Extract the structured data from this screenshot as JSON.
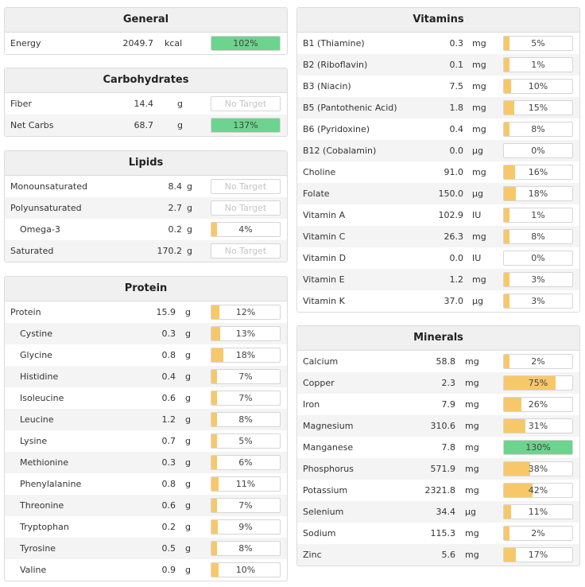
{
  "colors": {
    "yellow": "#f7c86a",
    "green": "#6cd48e"
  },
  "panels": [
    {
      "id": "general",
      "title": "General",
      "rows": [
        {
          "name": "Energy",
          "amount": "2049.7",
          "unit": "kcal",
          "pct_label": "102%",
          "fill": 1.0,
          "color": "green"
        }
      ]
    },
    {
      "id": "carbohydrates",
      "title": "Carbohydrates",
      "rows": [
        {
          "name": "Fiber",
          "amount": "14.4",
          "unit": "g",
          "pct_label": "No Target",
          "fill": 0,
          "color": "none"
        },
        {
          "name": "Net Carbs",
          "amount": "68.7",
          "unit": "g",
          "pct_label": "137%",
          "fill": 1.0,
          "color": "green"
        }
      ]
    },
    {
      "id": "lipids",
      "title": "Lipids",
      "rows": [
        {
          "name": "Monounsaturated",
          "amount": "8.4",
          "unit": "g",
          "pct_label": "No Target",
          "fill": 0,
          "color": "none"
        },
        {
          "name": "Polyunsaturated",
          "amount": "2.7",
          "unit": "g",
          "pct_label": "No Target",
          "fill": 0,
          "color": "none"
        },
        {
          "name": "Omega-3",
          "amount": "0.2",
          "unit": "g",
          "pct_label": "4%",
          "fill": 0.04,
          "color": "yellow",
          "indent": true
        },
        {
          "name": "Saturated",
          "amount": "170.2",
          "unit": "g",
          "pct_label": "No Target",
          "fill": 0,
          "color": "none"
        }
      ]
    },
    {
      "id": "protein",
      "title": "Protein",
      "rows": [
        {
          "name": "Protein",
          "amount": "15.9",
          "unit": "g",
          "pct_label": "12%",
          "fill": 0.12,
          "color": "yellow"
        },
        {
          "name": "Cystine",
          "amount": "0.3",
          "unit": "g",
          "pct_label": "13%",
          "fill": 0.13,
          "color": "yellow",
          "indent": true
        },
        {
          "name": "Glycine",
          "amount": "0.8",
          "unit": "g",
          "pct_label": "18%",
          "fill": 0.18,
          "color": "yellow",
          "indent": true
        },
        {
          "name": "Histidine",
          "amount": "0.4",
          "unit": "g",
          "pct_label": "7%",
          "fill": 0.07,
          "color": "yellow",
          "indent": true
        },
        {
          "name": "Isoleucine",
          "amount": "0.6",
          "unit": "g",
          "pct_label": "7%",
          "fill": 0.07,
          "color": "yellow",
          "indent": true
        },
        {
          "name": "Leucine",
          "amount": "1.2",
          "unit": "g",
          "pct_label": "8%",
          "fill": 0.08,
          "color": "yellow",
          "indent": true
        },
        {
          "name": "Lysine",
          "amount": "0.7",
          "unit": "g",
          "pct_label": "5%",
          "fill": 0.05,
          "color": "yellow",
          "indent": true
        },
        {
          "name": "Methionine",
          "amount": "0.3",
          "unit": "g",
          "pct_label": "6%",
          "fill": 0.06,
          "color": "yellow",
          "indent": true
        },
        {
          "name": "Phenylalanine",
          "amount": "0.8",
          "unit": "g",
          "pct_label": "11%",
          "fill": 0.11,
          "color": "yellow",
          "indent": true
        },
        {
          "name": "Threonine",
          "amount": "0.6",
          "unit": "g",
          "pct_label": "7%",
          "fill": 0.07,
          "color": "yellow",
          "indent": true
        },
        {
          "name": "Tryptophan",
          "amount": "0.2",
          "unit": "g",
          "pct_label": "9%",
          "fill": 0.09,
          "color": "yellow",
          "indent": true
        },
        {
          "name": "Tyrosine",
          "amount": "0.5",
          "unit": "g",
          "pct_label": "8%",
          "fill": 0.08,
          "color": "yellow",
          "indent": true
        },
        {
          "name": "Valine",
          "amount": "0.9",
          "unit": "g",
          "pct_label": "10%",
          "fill": 0.1,
          "color": "yellow",
          "indent": true
        }
      ]
    },
    {
      "id": "vitamins",
      "title": "Vitamins",
      "rows": [
        {
          "name": "B1 (Thiamine)",
          "amount": "0.3",
          "unit": "mg",
          "pct_label": "5%",
          "fill": 0.05,
          "color": "yellow"
        },
        {
          "name": "B2 (Riboflavin)",
          "amount": "0.1",
          "unit": "mg",
          "pct_label": "1%",
          "fill": 0.01,
          "color": "yellow"
        },
        {
          "name": "B3 (Niacin)",
          "amount": "7.5",
          "unit": "mg",
          "pct_label": "10%",
          "fill": 0.1,
          "color": "yellow"
        },
        {
          "name": "B5 (Pantothenic Acid)",
          "amount": "1.8",
          "unit": "mg",
          "pct_label": "15%",
          "fill": 0.15,
          "color": "yellow"
        },
        {
          "name": "B6 (Pyridoxine)",
          "amount": "0.4",
          "unit": "mg",
          "pct_label": "8%",
          "fill": 0.08,
          "color": "yellow"
        },
        {
          "name": "B12 (Cobalamin)",
          "amount": "0.0",
          "unit": "µg",
          "pct_label": "0%",
          "fill": 0,
          "color": "yellow"
        },
        {
          "name": "Choline",
          "amount": "91.0",
          "unit": "mg",
          "pct_label": "16%",
          "fill": 0.16,
          "color": "yellow"
        },
        {
          "name": "Folate",
          "amount": "150.0",
          "unit": "µg",
          "pct_label": "18%",
          "fill": 0.18,
          "color": "yellow"
        },
        {
          "name": "Vitamin A",
          "amount": "102.9",
          "unit": "IU",
          "pct_label": "1%",
          "fill": 0.01,
          "color": "yellow"
        },
        {
          "name": "Vitamin C",
          "amount": "26.3",
          "unit": "mg",
          "pct_label": "8%",
          "fill": 0.08,
          "color": "yellow"
        },
        {
          "name": "Vitamin D",
          "amount": "0.0",
          "unit": "IU",
          "pct_label": "0%",
          "fill": 0,
          "color": "yellow"
        },
        {
          "name": "Vitamin E",
          "amount": "1.2",
          "unit": "mg",
          "pct_label": "3%",
          "fill": 0.03,
          "color": "yellow"
        },
        {
          "name": "Vitamin K",
          "amount": "37.0",
          "unit": "µg",
          "pct_label": "3%",
          "fill": 0.03,
          "color": "yellow"
        }
      ]
    },
    {
      "id": "minerals",
      "title": "Minerals",
      "rows": [
        {
          "name": "Calcium",
          "amount": "58.8",
          "unit": "mg",
          "pct_label": "2%",
          "fill": 0.02,
          "color": "yellow"
        },
        {
          "name": "Copper",
          "amount": "2.3",
          "unit": "mg",
          "pct_label": "75%",
          "fill": 0.75,
          "color": "yellow"
        },
        {
          "name": "Iron",
          "amount": "7.9",
          "unit": "mg",
          "pct_label": "26%",
          "fill": 0.26,
          "color": "yellow"
        },
        {
          "name": "Magnesium",
          "amount": "310.6",
          "unit": "mg",
          "pct_label": "31%",
          "fill": 0.31,
          "color": "yellow"
        },
        {
          "name": "Manganese",
          "amount": "7.8",
          "unit": "mg",
          "pct_label": "130%",
          "fill": 1.0,
          "color": "green"
        },
        {
          "name": "Phosphorus",
          "amount": "571.9",
          "unit": "mg",
          "pct_label": "38%",
          "fill": 0.38,
          "color": "yellow"
        },
        {
          "name": "Potassium",
          "amount": "2321.8",
          "unit": "mg",
          "pct_label": "42%",
          "fill": 0.42,
          "color": "yellow"
        },
        {
          "name": "Selenium",
          "amount": "34.4",
          "unit": "µg",
          "pct_label": "11%",
          "fill": 0.11,
          "color": "yellow"
        },
        {
          "name": "Sodium",
          "amount": "115.3",
          "unit": "mg",
          "pct_label": "2%",
          "fill": 0.02,
          "color": "yellow"
        },
        {
          "name": "Zinc",
          "amount": "5.6",
          "unit": "mg",
          "pct_label": "17%",
          "fill": 0.17,
          "color": "yellow"
        }
      ]
    }
  ]
}
